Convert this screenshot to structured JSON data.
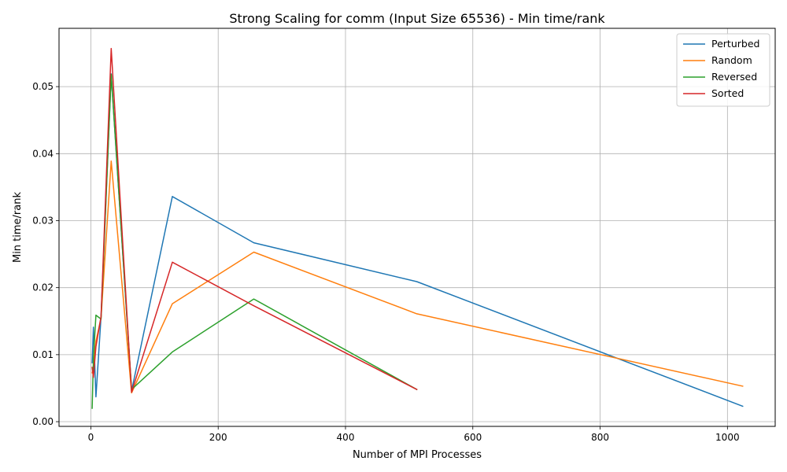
{
  "chart_data": {
    "type": "line",
    "title": "Strong Scaling for comm (Input Size 65536) - Min time/rank",
    "xlabel": "Number of MPI Processes",
    "ylabel": "Min time/rank",
    "xlim": [
      -50,
      1075
    ],
    "ylim": [
      -0.0007,
      0.0587
    ],
    "xticks": [
      0,
      200,
      400,
      600,
      800,
      1000
    ],
    "yticks": [
      0.0,
      0.01,
      0.02,
      0.03,
      0.04,
      0.05
    ],
    "xtick_labels": [
      "0",
      "200",
      "400",
      "600",
      "800",
      "1000"
    ],
    "ytick_labels": [
      "0.00",
      "0.01",
      "0.02",
      "0.03",
      "0.04",
      "0.05"
    ],
    "grid": true,
    "legend_position": "top-right",
    "series": [
      {
        "name": "Perturbed",
        "color": "#1f77b4",
        "x": [
          2,
          4,
          8,
          16,
          32,
          64,
          128,
          256,
          512,
          1024
        ],
        "y": [
          0.0088,
          0.0141,
          0.0037,
          0.0157,
          0.0519,
          0.0046,
          0.0336,
          0.0267,
          0.0209,
          0.0023
        ]
      },
      {
        "name": "Random",
        "color": "#ff7f0e",
        "x": [
          2,
          4,
          8,
          16,
          32,
          64,
          128,
          256,
          512,
          1024
        ],
        "y": [
          0.0073,
          0.008,
          0.012,
          0.0155,
          0.0389,
          0.0043,
          0.0176,
          0.0253,
          0.0161,
          0.0053
        ]
      },
      {
        "name": "Reversed",
        "color": "#2ca02c",
        "x": [
          2,
          4,
          8,
          16,
          32,
          64,
          128,
          256,
          512
        ],
        "y": [
          0.002,
          0.0094,
          0.0159,
          0.0153,
          0.0518,
          0.0048,
          0.0104,
          0.0183,
          0.0048
        ]
      },
      {
        "name": "Sorted",
        "color": "#d62728",
        "x": [
          2,
          4,
          8,
          16,
          32,
          64,
          128,
          256,
          512
        ],
        "y": [
          0.0081,
          0.0066,
          0.0112,
          0.0157,
          0.0557,
          0.0044,
          0.0238,
          0.0173,
          0.0048
        ]
      }
    ]
  }
}
